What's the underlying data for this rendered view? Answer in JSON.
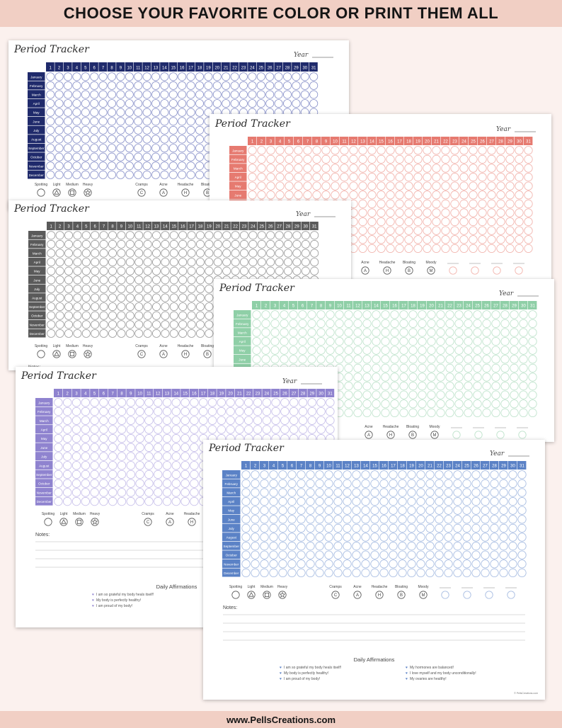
{
  "banner": {
    "text": "CHOOSE YOUR FAVORITE COLOR OR PRINT THEM ALL"
  },
  "footer": {
    "text": "www.PellsCreations.com"
  },
  "tracker": {
    "title": "Period Tracker",
    "year_label": "Year",
    "days": [
      "1",
      "2",
      "3",
      "4",
      "5",
      "6",
      "7",
      "8",
      "9",
      "10",
      "11",
      "12",
      "13",
      "14",
      "15",
      "16",
      "17",
      "18",
      "19",
      "20",
      "21",
      "22",
      "23",
      "24",
      "25",
      "26",
      "27",
      "28",
      "29",
      "30",
      "31"
    ],
    "months": [
      "January",
      "February",
      "March",
      "April",
      "May",
      "June",
      "July",
      "August",
      "September",
      "October",
      "November",
      "December"
    ],
    "flow_legend": [
      {
        "label": "Spotting",
        "symbol": "circle"
      },
      {
        "label": "Light",
        "symbol": "triangle"
      },
      {
        "label": "Medium",
        "symbol": "square"
      },
      {
        "label": "Heavy",
        "symbol": "flower"
      }
    ],
    "symptom_legend": [
      {
        "label": "Cramps",
        "letter": "C"
      },
      {
        "label": "Acne",
        "letter": "A"
      },
      {
        "label": "Headache",
        "letter": "H"
      },
      {
        "label": "Bloating",
        "letter": "B"
      },
      {
        "label": "Moody",
        "letter": "M"
      }
    ],
    "notes_label": "Notes:",
    "affirmations_title": "Daily Affirmations",
    "affirmations_left": [
      "I am so grateful my body heals itself!",
      "My body is perfectly healthy!",
      "I am proud of my body!"
    ],
    "affirmations_right": [
      "My hormones are balanced!",
      "I love myself and my body unconditionally!",
      "My ovaries are healthy!"
    ],
    "copyright": "© PellsCreations.com"
  },
  "sheets": [
    {
      "name": "sheet-navy",
      "color": "#1f2a6b",
      "circle": "#8f97cc"
    },
    {
      "name": "sheet-salmon",
      "color": "#e67a70",
      "circle": "#f2b4ad"
    },
    {
      "name": "sheet-gray",
      "color": "#5a5a5a",
      "circle": "#9e9e9e"
    },
    {
      "name": "sheet-mint",
      "color": "#8fcfa7",
      "circle": "#bfe3cc"
    },
    {
      "name": "sheet-lavender",
      "color": "#8f83cf",
      "circle": "#c5bde9"
    },
    {
      "name": "sheet-blue",
      "color": "#5b82c6",
      "circle": "#a8bde2"
    }
  ]
}
